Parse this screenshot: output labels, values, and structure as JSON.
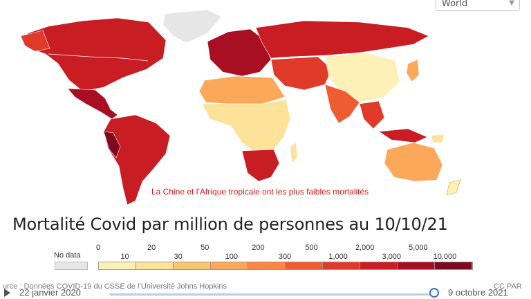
{
  "region_selector": {
    "value": "World"
  },
  "annotation": "La Chine et l’Afrique tropicale ont les plus faibles mortalités",
  "title": "Mortalité Covid par million de personnes au 10/10/21",
  "legend": {
    "no_data_label": "No data",
    "no_data_color": "#e6e6e6",
    "colors": [
      "#fdf1b8",
      "#fde29a",
      "#fcc670",
      "#fca85a",
      "#f98743",
      "#f05c32",
      "#e03a2a",
      "#c91d24",
      "#a80f22",
      "#7d0a1f"
    ],
    "ticks_top": [
      "0",
      "20",
      "50",
      "200",
      "500",
      "2,000",
      "5,000"
    ],
    "ticks_bottom": [
      "10",
      "30",
      "100",
      "300",
      "1,000",
      "3,000",
      "10,000"
    ]
  },
  "source": "urce : Données COVID-19 du CSSE de l’Université Johns Hopkins",
  "credit": "CC PAR",
  "timeline": {
    "start": "22 janvier 2020",
    "end": "9 octobre 2021",
    "progress": 1.0
  },
  "icons": {
    "play": "play-icon",
    "select": "chevron-down-icon"
  }
}
